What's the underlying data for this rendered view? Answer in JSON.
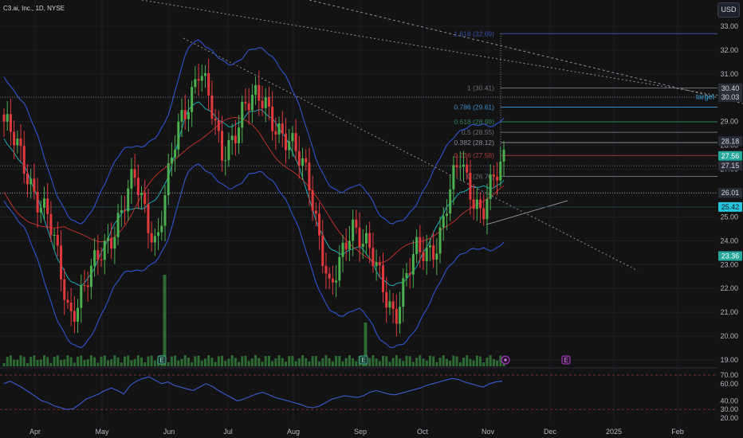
{
  "header": {
    "symbol_title": "C3.ai, Inc., 1D, NYSE",
    "currency_button": "USD"
  },
  "colors": {
    "background": "#131313",
    "up": "#4caf50",
    "down": "#e03a3e",
    "bb_band": "#2f54c9",
    "sma_short": "#1ca7b6",
    "sma_long": "#b5312c",
    "volume": "#2e6b34",
    "rsi": "#3b5ccc",
    "fib_blue": "#3a4fa8",
    "fib_green": "#2e7d4f",
    "fib_red": "#9c3a3a",
    "trendline": "#8a8d96",
    "target": "#3aa3d6"
  },
  "price_axis": {
    "min": 19.0,
    "max": 33.0,
    "ticks": [
      "33.00",
      "32.00",
      "31.00",
      "30.00",
      "29.00",
      "28.00",
      "27.00",
      "26.00",
      "25.00",
      "24.00",
      "23.00",
      "22.00",
      "21.00",
      "20.00",
      "19.00"
    ]
  },
  "rsi_axis": {
    "ticks": [
      "70.00",
      "60.00",
      "40.00",
      "30.00",
      "20.00"
    ],
    "levels": [
      70,
      30
    ]
  },
  "time_axis": {
    "labels": [
      "Apr",
      "May",
      "Jun",
      "Jul",
      "Aug",
      "Sep",
      "Oct",
      "Nov",
      "Dec",
      "2025",
      "Feb"
    ]
  },
  "price_tags": [
    {
      "text": "30.40",
      "bg": "#2a2e39",
      "fg": "#d1d4dc"
    },
    {
      "text": "30.03",
      "bg": "#2a2e39",
      "fg": "#d1d4dc"
    },
    {
      "text": "28.18",
      "bg": "#2a2e39",
      "fg": "#d1d4dc"
    },
    {
      "text": "27.56",
      "bg": "#26a69a",
      "fg": "#ffffff"
    },
    {
      "text": "27.15",
      "bg": "#2a2e39",
      "fg": "#d1d4dc"
    },
    {
      "text": "26.01",
      "bg": "#2a2e39",
      "fg": "#d1d4dc"
    },
    {
      "text": "25.42",
      "bg": "#26c6da",
      "fg": "#0b1a20"
    },
    {
      "text": "23.36",
      "bg": "#26a69a",
      "fg": "#ffffff"
    }
  ],
  "target_label": "target",
  "fib_levels": [
    {
      "label": "1.618 (32.69)",
      "color": "#3a4fa8"
    },
    {
      "label": "1 (30.41)",
      "color": "#6b6e78"
    },
    {
      "label": "0.786 (29.61)",
      "color": "#3a89c9"
    },
    {
      "label": "0.618 (28.99)",
      "color": "#2e7d4f"
    },
    {
      "label": "0.5 (28.55)",
      "color": "#6b6e78"
    },
    {
      "label": "0.382 (28.12)",
      "color": "#8a8d96"
    },
    {
      "label": "0.236 (27.58)",
      "color": "#9c3a3a"
    },
    {
      "label": "0 (26.70)",
      "color": "#6b6e78"
    }
  ],
  "earnings_markers": [
    {
      "text": "E",
      "type": "earnings"
    },
    {
      "text": "E",
      "type": "earnings"
    },
    {
      "text": "E",
      "type": "earnings-upcoming"
    }
  ],
  "chart_data": {
    "type": "candlestick",
    "xlabel": "",
    "ylabel": "",
    "x_months": [
      "Apr",
      "May",
      "Jun",
      "Jul",
      "Aug",
      "Sep",
      "Oct",
      "Nov"
    ],
    "approx_close_path": [
      {
        "t": "Mar",
        "v": 29.0
      },
      {
        "t": "early Apr",
        "v": 27.0
      },
      {
        "t": "mid Apr",
        "v": 25.0
      },
      {
        "t": "late Apr",
        "v": 21.0
      },
      {
        "t": "early May",
        "v": 22.5
      },
      {
        "t": "mid May",
        "v": 24.5
      },
      {
        "t": "late May",
        "v": 26.5
      },
      {
        "t": "end May",
        "v": 24.0
      },
      {
        "t": "early Jun",
        "v": 28.5
      },
      {
        "t": "mid Jun",
        "v": 31.5
      },
      {
        "t": "late Jun",
        "v": 27.5
      },
      {
        "t": "early Jul",
        "v": 29.5
      },
      {
        "t": "mid Jul",
        "v": 30.0
      },
      {
        "t": "late Jul",
        "v": 28.0
      },
      {
        "t": "early Aug",
        "v": 27.0
      },
      {
        "t": "mid Aug",
        "v": 21.5
      },
      {
        "t": "late Aug",
        "v": 25.0
      },
      {
        "t": "early Sep",
        "v": 23.0
      },
      {
        "t": "mid Sep",
        "v": 21.0
      },
      {
        "t": "late Sep",
        "v": 23.5
      },
      {
        "t": "early Oct",
        "v": 24.0
      },
      {
        "t": "mid Oct",
        "v": 27.5
      },
      {
        "t": "late Oct",
        "v": 25.0
      },
      {
        "t": "early Nov",
        "v": 27.56
      }
    ],
    "last_price": 27.56,
    "rsi_range": [
      20,
      70
    ]
  }
}
